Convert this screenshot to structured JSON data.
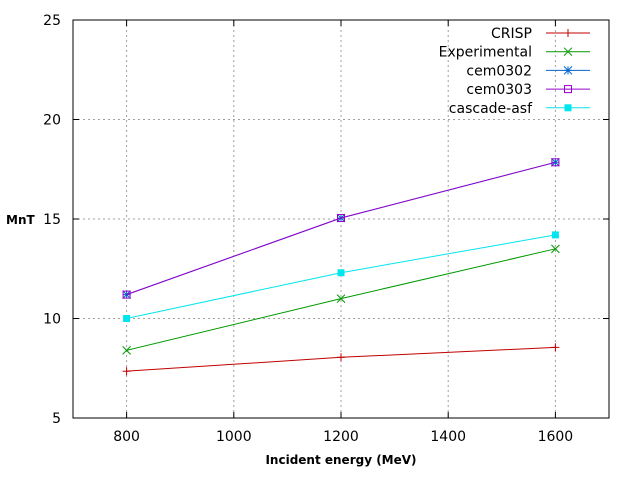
{
  "chart_data": {
    "type": "line",
    "xlabel": "Incident energy (MeV)",
    "ylabel": "MnT",
    "xlim": [
      700,
      1700
    ],
    "ylim": [
      5,
      25
    ],
    "xticks": [
      800,
      1000,
      1200,
      1400,
      1600
    ],
    "yticks": [
      5,
      10,
      15,
      20,
      25
    ],
    "grid": true,
    "legend_position": "top-right",
    "series": [
      {
        "name": "CRISP",
        "color": "#c00000",
        "marker": "plus",
        "x": [
          800,
          1200,
          1600
        ],
        "y": [
          7.35,
          8.05,
          8.55
        ]
      },
      {
        "name": "Experimental",
        "color": "#009900",
        "marker": "cross",
        "x": [
          800,
          1200,
          1600
        ],
        "y": [
          8.4,
          11.0,
          13.5
        ]
      },
      {
        "name": "cem0302",
        "color": "#0066cc",
        "marker": "star",
        "x": [
          800,
          1200,
          1600
        ],
        "y": [
          11.2,
          15.05,
          17.85
        ]
      },
      {
        "name": "cem0303",
        "color": "#9900cc",
        "marker": "square-open",
        "x": [
          800,
          1200,
          1600
        ],
        "y": [
          11.2,
          15.05,
          17.85
        ]
      },
      {
        "name": "cascade-asf",
        "color": "#00e5ee",
        "marker": "square-filled",
        "x": [
          800,
          1200,
          1600
        ],
        "y": [
          10.0,
          12.3,
          14.2
        ]
      }
    ]
  }
}
